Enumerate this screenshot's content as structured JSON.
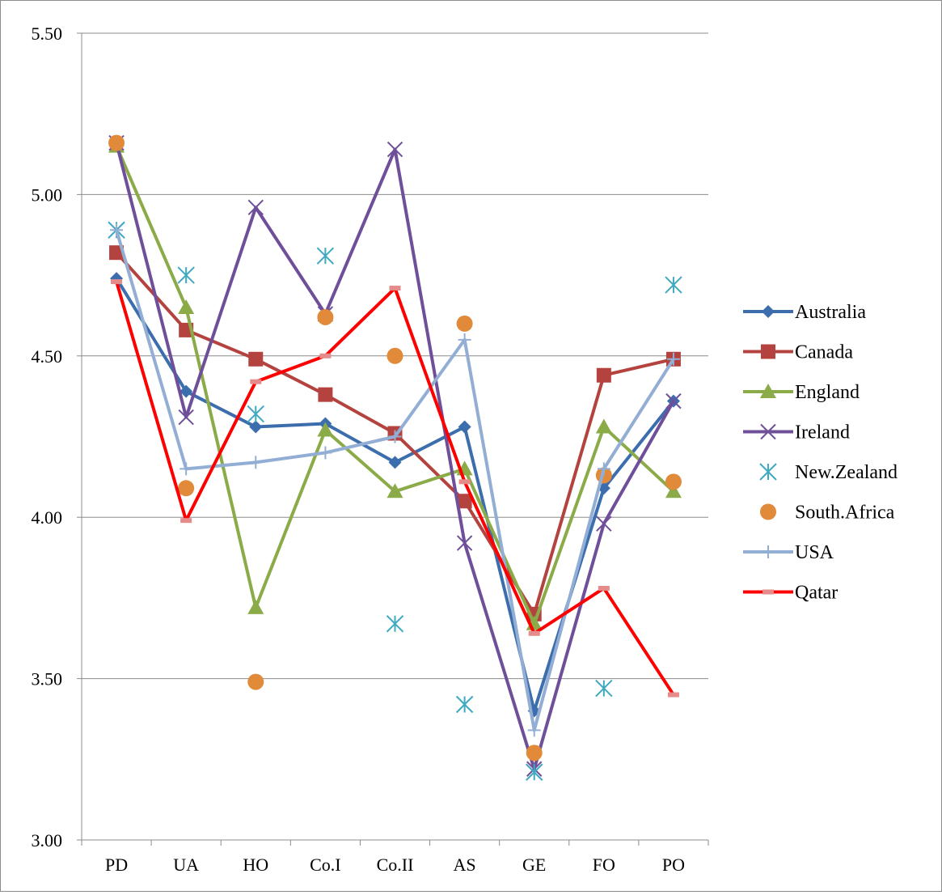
{
  "chart_data": {
    "type": "line",
    "categories": [
      "PD",
      "UA",
      "HO",
      "Co.I",
      "Co.II",
      "AS",
      "GE",
      "FO",
      "PO"
    ],
    "ylim": [
      3.0,
      5.5
    ],
    "y_ticks": [
      "3.00",
      "3.50",
      "4.00",
      "4.50",
      "5.00",
      "5.50"
    ],
    "y_tick_values": [
      3.0,
      3.5,
      4.0,
      4.5,
      5.0,
      5.5
    ],
    "grid": true,
    "legend_position": "right",
    "series": [
      {
        "name": "Australia",
        "color": "#3c6eae",
        "line": true,
        "marker": "diamond",
        "values": [
          4.74,
          4.39,
          4.28,
          4.29,
          4.17,
          4.28,
          3.4,
          4.09,
          4.36
        ]
      },
      {
        "name": "Canada",
        "color": "#b4433f",
        "line": true,
        "marker": "square",
        "values": [
          4.82,
          4.58,
          4.49,
          4.38,
          4.26,
          4.05,
          3.7,
          4.44,
          4.49
        ]
      },
      {
        "name": "England",
        "color": "#8aab47",
        "line": true,
        "marker": "triangle",
        "values": [
          5.15,
          4.65,
          3.72,
          4.27,
          4.08,
          4.15,
          3.67,
          4.28,
          4.08
        ]
      },
      {
        "name": "Ireland",
        "color": "#6f4f9a",
        "line": true,
        "marker": "x",
        "values": [
          5.16,
          4.31,
          4.96,
          4.63,
          5.14,
          3.92,
          3.22,
          3.98,
          4.36
        ]
      },
      {
        "name": "New.Zealand",
        "color": "#3fa9c2",
        "line": false,
        "marker": "star",
        "values": [
          4.89,
          4.75,
          4.32,
          4.81,
          3.67,
          3.42,
          3.21,
          3.47,
          4.72
        ]
      },
      {
        "name": "South.Africa",
        "color": "#e08a3a",
        "line": false,
        "marker": "circle",
        "values": [
          5.16,
          4.09,
          3.49,
          4.62,
          4.5,
          4.6,
          3.27,
          4.13,
          4.11
        ]
      },
      {
        "name": "USA",
        "color": "#93aed4",
        "line": true,
        "marker": "plus",
        "values": [
          4.89,
          4.15,
          4.17,
          4.2,
          4.25,
          4.55,
          3.34,
          4.15,
          4.49
        ]
      },
      {
        "name": "Qatar",
        "color": "#ff0000",
        "line": true,
        "marker": "dash",
        "values": [
          4.73,
          3.99,
          4.42,
          4.5,
          4.71,
          4.11,
          3.64,
          3.78,
          3.45
        ]
      }
    ]
  }
}
